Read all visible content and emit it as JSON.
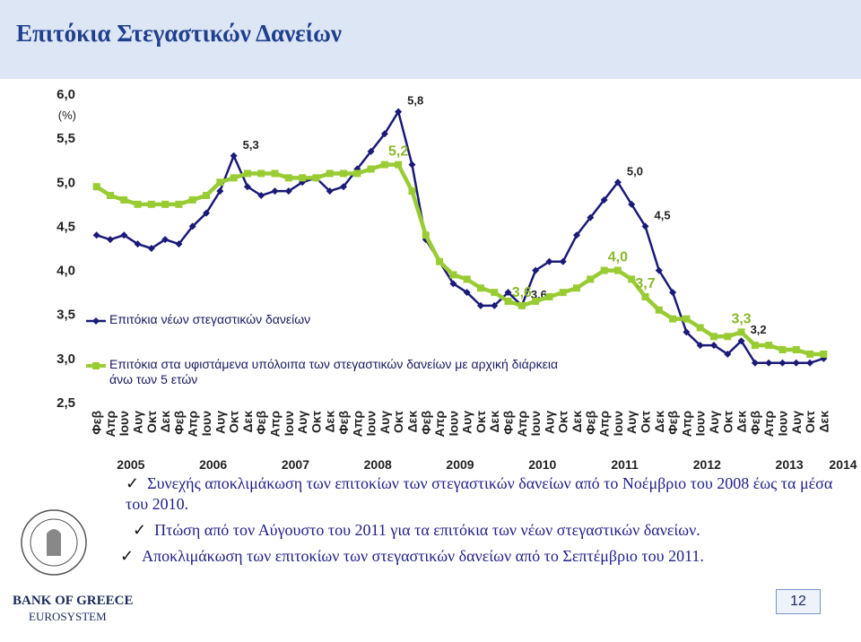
{
  "title": "Επιτόκια Στεγαστικών Δανείων",
  "chart_data": {
    "type": "line",
    "y_label": "(%)",
    "categories": [
      "Φεβ",
      "Απρ",
      "Ιουν",
      "Αυγ",
      "Οκτ",
      "Δεκ",
      "Φεβ",
      "Απρ",
      "Ιουν",
      "Αυγ",
      "Οκτ",
      "Δεκ",
      "Φεβ",
      "Απρ",
      "Ιουν",
      "Αυγ",
      "Οκτ",
      "Δεκ",
      "Φεβ",
      "Απρ",
      "Ιουν",
      "Αυγ",
      "Οκτ",
      "Δεκ",
      "Φεβ",
      "Απρ",
      "Ιουν",
      "Αυγ",
      "Οκτ",
      "Δεκ",
      "Φεβ",
      "Απρ",
      "Ιουν",
      "Αυγ",
      "Οκτ",
      "Δεκ",
      "Φεβ",
      "Απρ",
      "Ιουν",
      "Αυγ",
      "Οκτ",
      "Δεκ",
      "Φεβ",
      "Απρ",
      "Ιουν",
      "Αυγ",
      "Οκτ",
      "Δεκ",
      "Φεβ",
      "Απρ",
      "Ιουν",
      "Αυγ",
      "Οκτ",
      "Δεκ"
    ],
    "years": [
      "2005",
      "2006",
      "2007",
      "2008",
      "2009",
      "2010",
      "2011",
      "2012",
      "2013",
      "2014"
    ],
    "ylim": [
      2.5,
      6.0
    ],
    "yticks": [
      {
        "value": 2.5,
        "label": "2,5"
      },
      {
        "value": 3.0,
        "label": "3,0"
      },
      {
        "value": 3.5,
        "label": "3,5"
      },
      {
        "value": 4.0,
        "label": "4,0"
      },
      {
        "value": 4.5,
        "label": "4,5"
      },
      {
        "value": 5.0,
        "label": "5,0"
      },
      {
        "value": 5.5,
        "label": "5,5"
      },
      {
        "value": 6.0,
        "label": "6,0"
      }
    ],
    "series": [
      {
        "name": "Επιτόκια νέων στεγαστικών δανείων",
        "color": "#1a1a78",
        "marker": "diamond",
        "values": [
          4.4,
          4.35,
          4.4,
          4.3,
          4.25,
          4.35,
          4.3,
          4.5,
          4.65,
          4.9,
          5.3,
          4.95,
          4.85,
          4.9,
          4.9,
          5.0,
          5.05,
          4.9,
          4.95,
          5.15,
          5.35,
          5.55,
          5.8,
          5.2,
          4.35,
          4.1,
          3.85,
          3.75,
          3.6,
          3.6,
          3.75,
          3.6,
          4.0,
          4.1,
          4.1,
          4.4,
          4.6,
          4.8,
          5.0,
          4.75,
          4.5,
          4.0,
          3.75,
          3.3,
          3.15,
          3.15,
          3.05,
          3.2,
          2.95,
          2.95,
          2.95,
          2.95,
          2.95,
          3.0
        ],
        "value_labels": [
          null,
          null,
          null,
          null,
          null,
          null,
          null,
          null,
          null,
          null,
          "5,3",
          null,
          null,
          null,
          null,
          null,
          null,
          null,
          null,
          null,
          null,
          null,
          "5,8",
          null,
          null,
          null,
          null,
          null,
          null,
          null,
          null,
          "3,6",
          null,
          null,
          null,
          null,
          null,
          null,
          "5,0",
          null,
          "4,5",
          null,
          null,
          null,
          null,
          null,
          null,
          "3,2",
          null,
          null,
          null,
          null,
          null,
          null
        ]
      },
      {
        "name": "Επιτόκια στα υφιστάμενα υπόλοιπα των στεγαστικών δανείων με αρχική διάρκεια άνω των 5 ετών",
        "color": "#99cc33",
        "marker": "square",
        "values": [
          4.95,
          4.85,
          4.8,
          4.75,
          4.75,
          4.75,
          4.75,
          4.8,
          4.85,
          5.0,
          5.05,
          5.1,
          5.1,
          5.1,
          5.05,
          5.05,
          5.05,
          5.1,
          5.1,
          5.1,
          5.15,
          5.2,
          5.2,
          4.9,
          4.4,
          4.1,
          3.95,
          3.9,
          3.8,
          3.75,
          3.65,
          3.6,
          3.65,
          3.7,
          3.75,
          3.8,
          3.9,
          4.0,
          4.0,
          3.9,
          3.7,
          3.55,
          3.45,
          3.45,
          3.35,
          3.25,
          3.25,
          3.3,
          3.15,
          3.15,
          3.1,
          3.1,
          3.05,
          3.05
        ],
        "value_labels": [
          null,
          null,
          null,
          null,
          null,
          null,
          null,
          null,
          null,
          null,
          null,
          null,
          null,
          null,
          null,
          null,
          null,
          null,
          null,
          null,
          null,
          null,
          "5,2",
          null,
          null,
          null,
          null,
          null,
          null,
          null,
          null,
          "3,6",
          null,
          null,
          null,
          null,
          null,
          null,
          "4,0",
          null,
          "3,7",
          null,
          null,
          null,
          null,
          null,
          null,
          "3,3",
          null,
          null,
          null,
          null,
          null,
          null
        ]
      }
    ]
  },
  "bullets": [
    "Συνεχής αποκλιμάκωση των επιτοκίων των στεγαστικών δανείων από το Νοέμβριο του 2008 έως τα μέσα του 2010.",
    "Πτώση από τον Αύγουστο του 2011 για τα επιτόκια των νέων στεγαστικών δανείων.",
    "Αποκλιμάκωση των επιτοκίων των στεγαστικών δανείων από το Σεπτέμβριο του 2011."
  ],
  "footer": {
    "bank": "BANK OF GREECE",
    "system": "EUROSYSTEM",
    "page": "12"
  }
}
